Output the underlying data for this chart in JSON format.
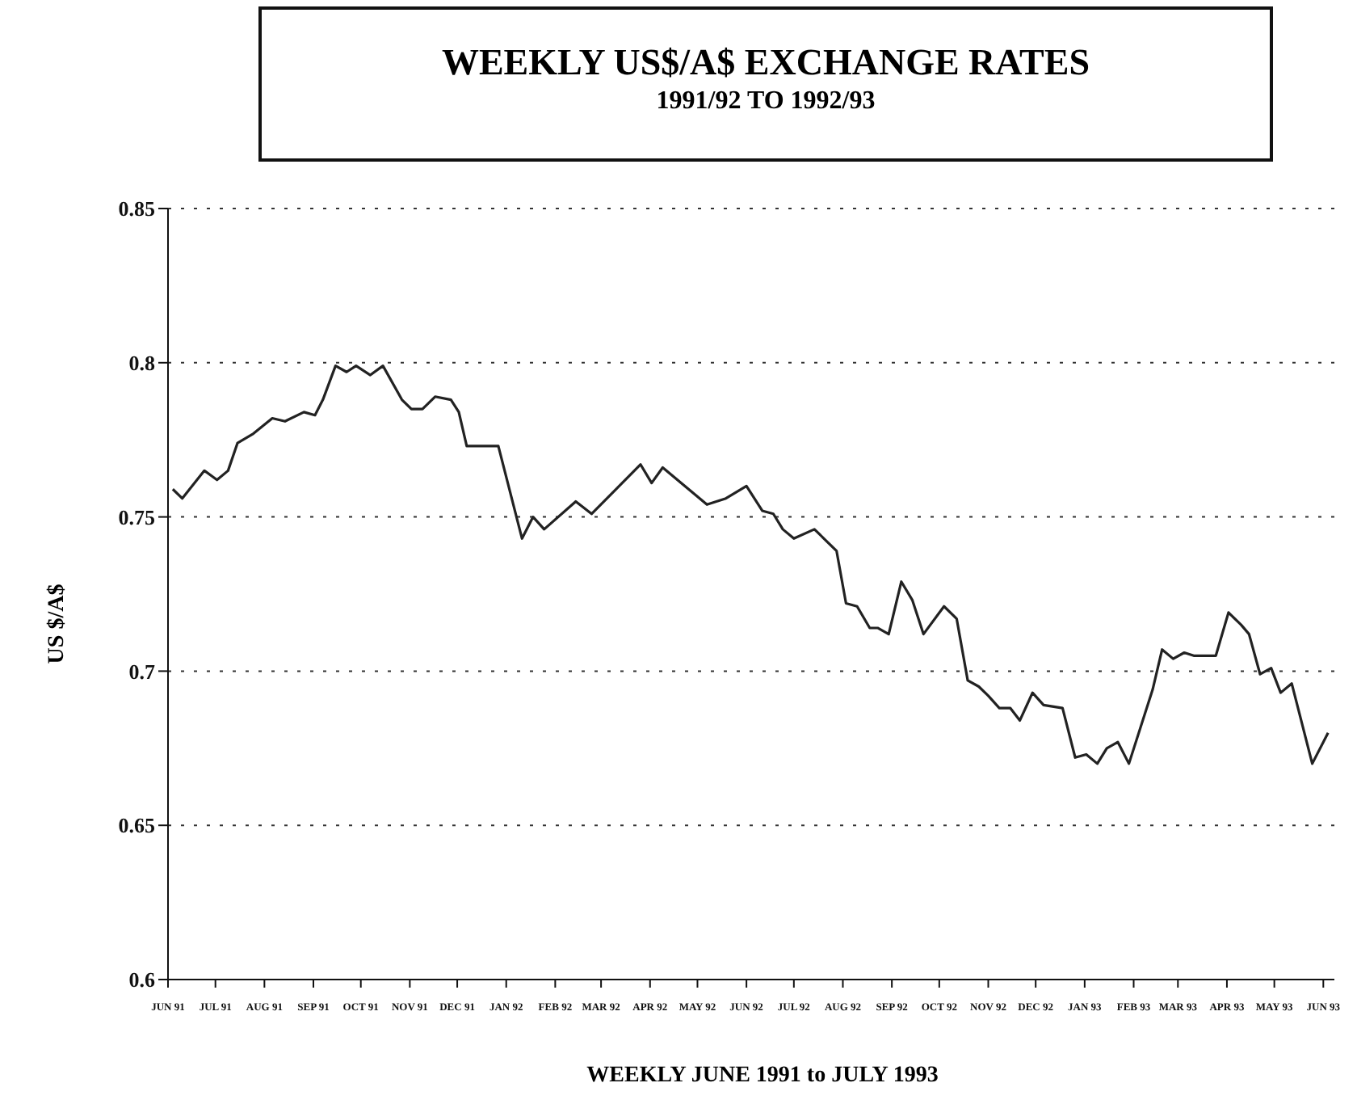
{
  "chart_data": {
    "type": "line",
    "title": "WEEKLY US$/A$ EXCHANGE RATES",
    "subtitle": "1991/92 TO 1992/93",
    "xlabel": "WEEKLY JUNE 1991 to JULY 1993",
    "ylabel": "US $/A$",
    "x": [
      "1991-06-04",
      "1991-06-10",
      "1991-06-24",
      "1991-07-02",
      "1991-07-09",
      "1991-07-15",
      "1991-07-25",
      "1991-08-06",
      "1991-08-14",
      "1991-08-26",
      "1991-09-02",
      "1991-09-07",
      "1991-09-15",
      "1991-09-22",
      "1991-09-28",
      "1991-10-07",
      "1991-10-15",
      "1991-10-27",
      "1991-11-02",
      "1991-11-09",
      "1991-11-17",
      "1991-11-27",
      "1991-12-02",
      "1991-12-07",
      "1991-12-27",
      "1992-01-11",
      "1992-01-18",
      "1992-01-25",
      "1992-02-14",
      "1992-02-24",
      "1992-03-26",
      "1992-04-02",
      "1992-04-09",
      "1992-05-07",
      "1992-05-19",
      "1992-06-01",
      "1992-06-11",
      "1992-06-18",
      "1992-06-24",
      "1992-07-01",
      "1992-07-14",
      "1992-07-28",
      "1992-08-03",
      "1992-08-10",
      "1992-08-18",
      "1992-08-23",
      "1992-08-30",
      "1992-09-07",
      "1992-09-14",
      "1992-09-21",
      "1992-10-04",
      "1992-10-12",
      "1992-10-19",
      "1992-10-26",
      "1992-11-01",
      "1992-11-08",
      "1992-11-15",
      "1992-11-21",
      "1992-11-29",
      "1992-12-06",
      "1992-12-18",
      "1992-12-26",
      "1993-01-02",
      "1993-01-09",
      "1993-01-15",
      "1993-01-22",
      "1993-01-29",
      "1993-02-13",
      "1993-02-19",
      "1993-02-26",
      "1993-03-05",
      "1993-03-11",
      "1993-03-25",
      "1993-04-02",
      "1993-04-10",
      "1993-04-15",
      "1993-04-22",
      "1993-04-29",
      "1993-05-05",
      "1993-05-12",
      "1993-05-25",
      "1993-06-04"
    ],
    "series": [
      {
        "color": "#222222",
        "values": [
          0.759,
          0.756,
          0.765,
          0.762,
          0.765,
          0.774,
          0.777,
          0.782,
          0.781,
          0.784,
          0.783,
          0.788,
          0.799,
          0.797,
          0.799,
          0.796,
          0.799,
          0.788,
          0.785,
          0.785,
          0.789,
          0.788,
          0.784,
          0.773,
          0.773,
          0.743,
          0.75,
          0.746,
          0.755,
          0.751,
          0.767,
          0.761,
          0.766,
          0.754,
          0.756,
          0.76,
          0.752,
          0.751,
          0.746,
          0.743,
          0.746,
          0.739,
          0.722,
          0.721,
          0.714,
          0.714,
          0.712,
          0.729,
          0.723,
          0.712,
          0.721,
          0.717,
          0.697,
          0.695,
          0.692,
          0.688,
          0.688,
          0.684,
          0.693,
          0.689,
          0.688,
          0.672,
          0.673,
          0.67,
          0.675,
          0.677,
          0.67,
          0.694,
          0.707,
          0.704,
          0.706,
          0.705,
          0.705,
          0.719,
          0.715,
          0.712,
          0.699,
          0.701,
          0.693,
          0.696,
          0.67,
          0.68
        ]
      }
    ],
    "xlim": [
      "1991-06-01",
      "1993-06-08"
    ],
    "xticks": [
      {
        "value": "1991-06-01",
        "label": "JUN 91"
      },
      {
        "value": "1991-07-01",
        "label": "JUL 91"
      },
      {
        "value": "1991-08-01",
        "label": "AUG 91"
      },
      {
        "value": "1991-09-01",
        "label": "SEP 91"
      },
      {
        "value": "1991-10-01",
        "label": "OCT 91"
      },
      {
        "value": "1991-11-01",
        "label": "NOV 91"
      },
      {
        "value": "1991-12-01",
        "label": "DEC 91"
      },
      {
        "value": "1992-01-01",
        "label": "JAN 92"
      },
      {
        "value": "1992-02-01",
        "label": "FEB 92"
      },
      {
        "value": "1992-03-01",
        "label": "MAR 92"
      },
      {
        "value": "1992-04-01",
        "label": "APR 92"
      },
      {
        "value": "1992-05-01",
        "label": "MAY 92"
      },
      {
        "value": "1992-06-01",
        "label": "JUN 92"
      },
      {
        "value": "1992-07-01",
        "label": "JUL 92"
      },
      {
        "value": "1992-08-01",
        "label": "AUG 92"
      },
      {
        "value": "1992-09-01",
        "label": "SEP 92"
      },
      {
        "value": "1992-10-01",
        "label": "OCT 92"
      },
      {
        "value": "1992-11-01",
        "label": "NOV 92"
      },
      {
        "value": "1992-12-01",
        "label": "DEC 92"
      },
      {
        "value": "1993-01-01",
        "label": "JAN 93"
      },
      {
        "value": "1993-02-01",
        "label": "FEB 93"
      },
      {
        "value": "1993-03-01",
        "label": "MAR 93"
      },
      {
        "value": "1993-04-01",
        "label": "APR 93"
      },
      {
        "value": "1993-05-01",
        "label": "MAY 93"
      },
      {
        "value": "1993-06-01",
        "label": "JUN 93"
      }
    ],
    "ylim": [
      0.6,
      0.85
    ],
    "yticks": [
      0.6,
      0.65,
      0.7,
      0.75,
      0.8,
      0.85
    ],
    "grid": "y",
    "legend": false,
    "marker": "none",
    "line_style": "solid"
  }
}
